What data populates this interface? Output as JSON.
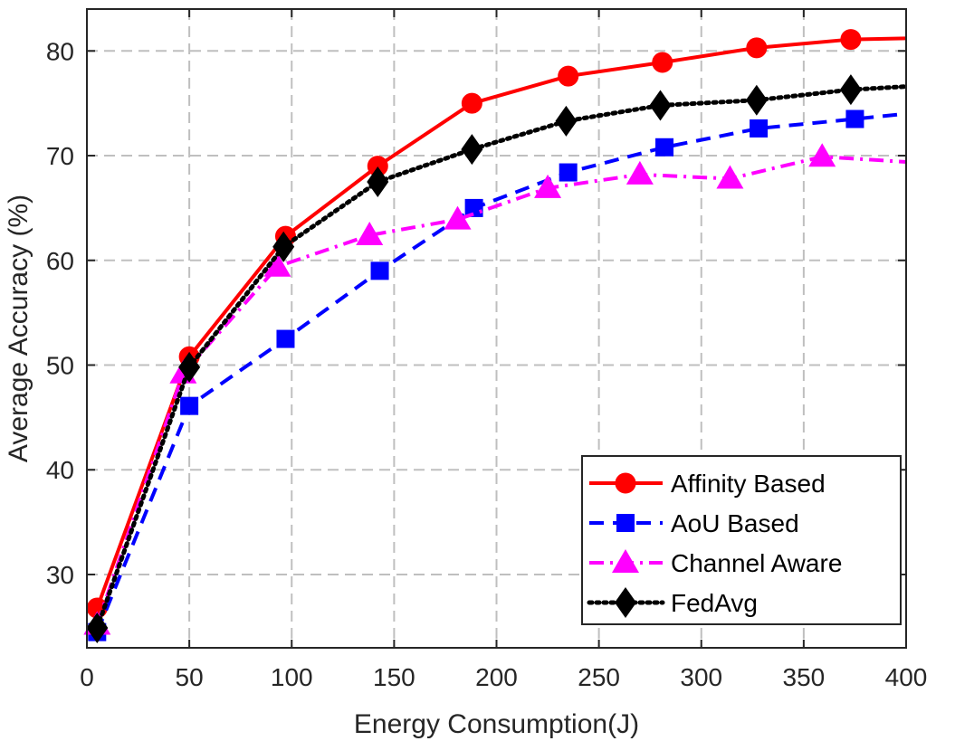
{
  "chart_data": {
    "type": "line",
    "title": "",
    "xlabel": "Energy Consumption(J)",
    "ylabel": "Average Accuracy (%)",
    "xlim": [
      0,
      400
    ],
    "ylim": [
      23,
      84
    ],
    "xticks": [
      0,
      50,
      100,
      150,
      200,
      250,
      300,
      350,
      400
    ],
    "yticks": [
      30,
      40,
      50,
      60,
      70,
      80
    ],
    "grid": true,
    "legend_position": "bottom-right",
    "series": [
      {
        "name": "Affinity Based",
        "color": "#ff0000",
        "line_style": "solid",
        "marker": "circle",
        "x": [
          5,
          50,
          97,
          142,
          188,
          235,
          281,
          327,
          373,
          400
        ],
        "y": [
          26.8,
          50.8,
          62.3,
          69.0,
          75.0,
          77.6,
          78.9,
          80.3,
          81.1,
          81.2
        ],
        "marker_count": 9
      },
      {
        "name": "AoU Based",
        "color": "#0000ff",
        "line_style": "dashed",
        "marker": "square",
        "x": [
          5,
          50,
          97,
          143,
          189,
          235,
          282,
          328,
          375,
          400
        ],
        "y": [
          24.5,
          46.1,
          52.5,
          59.0,
          65.0,
          68.4,
          70.8,
          72.6,
          73.5,
          74.0
        ],
        "marker_count": 9
      },
      {
        "name": "Channel Aware",
        "color": "#ff00ff",
        "line_style": "dashdot",
        "marker": "triangle",
        "x": [
          5,
          47,
          93,
          138,
          181,
          225,
          270,
          314,
          359,
          400
        ],
        "y": [
          25.2,
          49.2,
          59.4,
          62.4,
          63.9,
          66.9,
          68.2,
          67.8,
          69.9,
          69.4
        ],
        "marker_count": 9
      },
      {
        "name": "FedAvg",
        "color": "#000000",
        "line_style": "dotted",
        "marker": "diamond",
        "x": [
          5,
          50,
          96,
          142,
          188,
          234,
          280,
          327,
          373,
          400
        ],
        "y": [
          24.9,
          49.8,
          61.3,
          67.5,
          70.6,
          73.3,
          74.8,
          75.3,
          76.3,
          76.6
        ],
        "marker_count": 9
      }
    ]
  }
}
